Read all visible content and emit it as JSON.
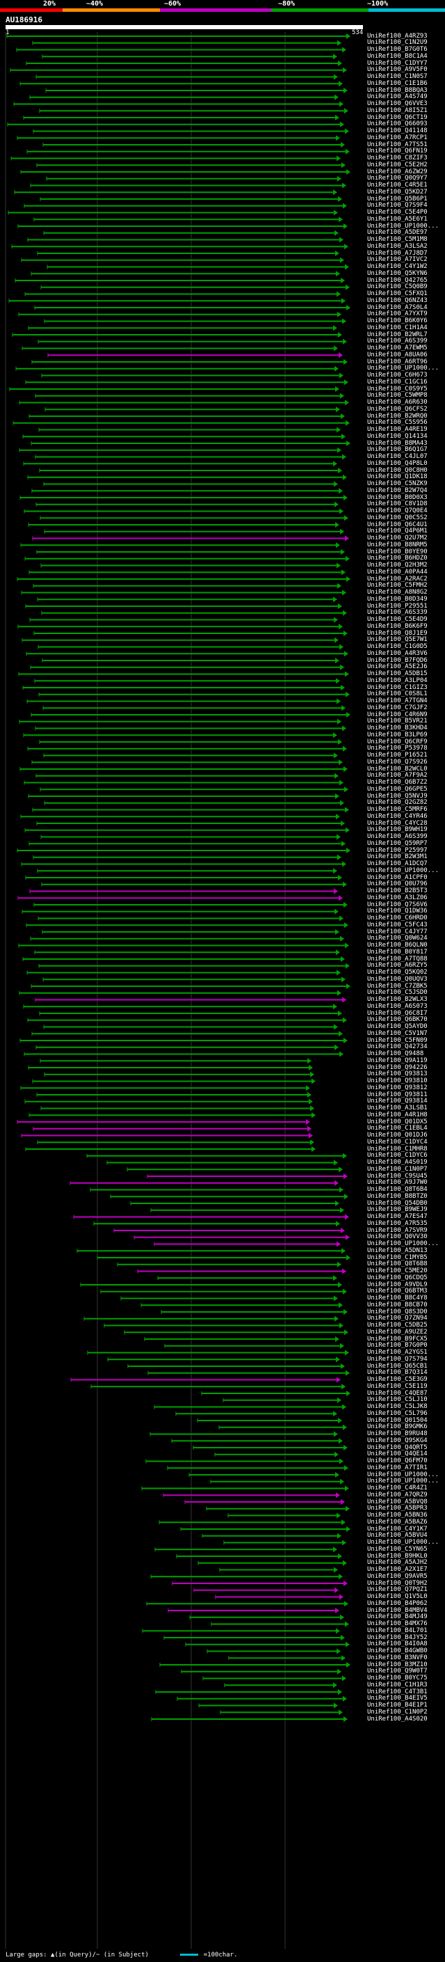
{
  "legend": {
    "marks": [
      "20%",
      "~40%",
      "~60%",
      "~80%",
      "~100%"
    ],
    "colors": [
      "#ff0000",
      "#ff8c00",
      "#c000c0",
      "#00a000",
      "#00bcd4"
    ]
  },
  "query": {
    "id": "AU186916",
    "start_label": "1",
    "end_label": "534"
  },
  "hits": [
    "UniRef100_A4RZ93",
    "UniRef100_C1N2U9",
    "UniRef100_B7G0T6",
    "UniRef100_B8C1A4",
    "UniRef100_C1DYY7",
    "UniRef100_A9V5F0",
    "UniRef100_C1N0S7",
    "UniRef100_C1E1B6",
    "UniRef100_B8BQA3",
    "UniRef100_A4S749",
    "UniRef100_Q6VVE3",
    "UniRef100_A8I5Z1",
    "UniRef100_Q6CT19",
    "UniRef100_Q66093",
    "UniRef100_Q41148",
    "UniRef100_A7RCP1",
    "UniRef100_A7TS51",
    "UniRef100_Q6FN19",
    "UniRef100_C8ZIF3",
    "UniRef100_C5E2H2",
    "UniRef100_A6ZW29",
    "UniRef100_Q0Q9Y7",
    "UniRef100_C4R5E1",
    "UniRef100_Q5KD27",
    "UniRef100_Q5B6P1",
    "UniRef100_Q7S9F4",
    "UniRef100_C5E4P0",
    "UniRef100_A5E6Y1",
    "UniRef100_UP1000...",
    "UniRef100_A5DE97",
    "UniRef100_C5M1M8",
    "UniRef100_A3LSA2",
    "UniRef100_A7J8D7",
    "UniRef100_A7IVC2",
    "UniRef100_C4Y1W2",
    "UniRef100_Q5KYN6",
    "UniRef100_Q42765",
    "UniRef100_C5Q0B9",
    "UniRef100_C5FXQ1",
    "UniRef100_Q6NZ43",
    "UniRef100_A7S0L4",
    "UniRef100_A7YXT9",
    "UniRef100_B6K0Y6",
    "UniRef100_C1H1A4",
    "UniRef100_B2WRL7",
    "UniRef100_A6S399",
    "UniRef100_A7EWM5",
    "UniRef100_A8UA06",
    "UniRef100_A6RT96",
    "UniRef100_UP1000...",
    "UniRef100_C6H673",
    "UniRef100_C1GC16",
    "UniRef100_C0S9Y5",
    "UniRef100_C5WMP8",
    "UniRef100_A6R630",
    "UniRef100_Q6CFS2",
    "UniRef100_B2WRQ0",
    "UniRef100_C5S956",
    "UniRef100_A4RE19",
    "UniRef100_Q14134",
    "UniRef100_B8MA43",
    "UniRef100_B6Q1G7",
    "UniRef100_C4JL07",
    "UniRef100_Q4P8L0",
    "UniRef100_Q0C8H0",
    "UniRef100_Q1DK18",
    "UniRef100_C5NZK9",
    "UniRef100_B2W7Q4",
    "UniRef100_B0D0X3",
    "UniRef100_C8V1D8",
    "UniRef100_Q7Q0E4",
    "UniRef100_Q0C5S2",
    "UniRef100_Q6C4U1",
    "UniRef100_Q4P6M1",
    "UniRef100_Q2U7M2",
    "UniRef100_B8NRM5",
    "UniRef100_B0YE90",
    "UniRef100_B6HDZ0",
    "UniRef100_Q2H3M2",
    "UniRef100_A0PA44",
    "UniRef100_A2RAC2",
    "UniRef100_C5FMH2",
    "UniRef100_A8N8G2",
    "UniRef100_B0D349",
    "UniRef100_P29551",
    "UniRef100_A6S339",
    "UniRef100_C5E4D9",
    "UniRef100_B6K6F9",
    "UniRef100_Q8J1E9",
    "UniRef100_Q5E7W1",
    "UniRef100_C1G0D5",
    "UniRef100_A4R3V6",
    "UniRef100_B7FQD6",
    "UniRef100_A5E2J6",
    "UniRef100_A5DB15",
    "UniRef100_A3LP04",
    "UniRef100_C1GIZ3",
    "UniRef100_C0S8L1",
    "UniRef100_A7TGN4",
    "UniRef100_C7GJF2",
    "UniRef100_C4R6N9",
    "UniRef100_B5VR21",
    "UniRef100_B3KHD4",
    "UniRef100_B3LP69",
    "UniRef100_Q6CRF9",
    "UniRef100_P53978",
    "UniRef100_P16521",
    "UniRef100_Q7S926",
    "UniRef100_B2WCL0",
    "UniRef100_A7F9A2",
    "UniRef100_Q6B7Z2",
    "UniRef100_Q6GPE5",
    "UniRef100_Q5NVJ9",
    "UniRef100_Q2GZ82",
    "UniRef100_C5MRF6",
    "UniRef100_C4YR46",
    "UniRef100_C4YC28",
    "UniRef100_B9WH19",
    "UniRef100_A6S399",
    "UniRef100_Q59RP7",
    "UniRef100_P25997",
    "UniRef100_B2W3M1",
    "UniRef100_A1DCQ7",
    "UniRef100_UP1000...",
    "UniRef100_A1CPF0",
    "UniRef100_Q0U796",
    "UniRef100_B2B5T3",
    "UniRef100_A3LZ06",
    "UniRef100_Q7S6V6",
    "UniRef100_Q1DW36",
    "UniRef100_C6HRD0",
    "UniRef100_C5FC43",
    "UniRef100_C4JY77",
    "UniRef100_Q0W624",
    "UniRef100_B6QLN0",
    "UniRef100_B0Y817",
    "UniRef100_A7TQ88",
    "UniRef100_A6RZY5",
    "UniRef100_Q5KQ02",
    "UniRef100_Q0UQV3",
    "UniRef100_C7ZBK5",
    "UniRef100_C5JSD0",
    "UniRef100_B2WLX3",
    "UniRef100_A6S073",
    "UniRef100_Q6C8I7",
    "UniRef100_Q6BK70",
    "UniRef100_Q5AYD0",
    "UniRef100_C5V1N7",
    "UniRef100_C5FN09",
    "UniRef100_Q42734",
    "UniRef100_Q9488",
    "UniRef100_Q9A119",
    "UniRef100_Q94226",
    "UniRef100_Q93813",
    "UniRef100_Q93810",
    "UniRef100_Q93812",
    "UniRef100_Q93811",
    "UniRef100_Q93814",
    "UniRef100_A3LSB1",
    "UniRef100_A4R1H8",
    "UniRef100_Q01DX5",
    "UniRef100_C1EBL4",
    "UniRef100_Q01DJ6",
    "UniRef100_C1DYC4",
    "UniRef100_C1MHR8",
    "UniRef100_C1DYC6",
    "UniRef100_A4S019",
    "UniRef100_C1N0P7",
    "UniRef100_C9SU45",
    "UniRef100_A9J7W0",
    "UniRef100_Q8T6B4",
    "UniRef100_B8BTZ0",
    "UniRef100_Q54DB0",
    "UniRef100_B9WEJ9",
    "UniRef100_A7ES47",
    "UniRef100_A7R535",
    "UniRef100_A7SVR9",
    "UniRef100_Q0VV30",
    "UniRef100_UP1000...",
    "UniRef100_A5DN13",
    "UniRef100_C1MYB5",
    "UniRef100_Q8T6B8",
    "UniRef100_C5ME20",
    "UniRef100_Q6CDQ5",
    "UniRef100_A9VDL9",
    "UniRef100_Q6BTM3",
    "UniRef100_B8C4Y8",
    "UniRef100_B8CB70",
    "UniRef100_Q8S3D0",
    "UniRef100_Q7ZN94",
    "UniRef100_C5DB25",
    "UniRef100_A9UZE2",
    "UniRef100_B9FCX5",
    "UniRef100_B7G0P0",
    "UniRef100_A2YGS1",
    "UniRef100_Q7S794",
    "UniRef100_Q65CB1",
    "UniRef100_B7Q314",
    "UniRef100_C5E3G9",
    "UniRef100_C5E119",
    "UniRef100_C4QE87",
    "UniRef100_C5LJ10",
    "UniRef100_C5LJK8",
    "UniRef100_C5L796",
    "UniRef100_Q01504",
    "UniRef100_B9GMK6",
    "UniRef100_B9RU48",
    "UniRef100_Q9SKG4",
    "UniRef100_Q4QRT5",
    "UniRef100_Q4QE14",
    "UniRef100_Q6FM70",
    "UniRef100_A7TIR1",
    "UniRef100_UP1000...",
    "UniRef100_UP1000...",
    "UniRef100_C4R4Z1",
    "UniRef100_A7QRZ9",
    "UniRef100_A5BVQ8",
    "UniRef100_A5BPR3",
    "UniRef100_A5BN36",
    "UniRef100_A5BAZ6",
    "UniRef100_C4Y1K7",
    "UniRef100_A5BVU4",
    "UniRef100_UP1000...",
    "UniRef100_C5YN65",
    "UniRef100_B9HKL0",
    "UniRef100_A5AJH2",
    "UniRef100_A2X1E7",
    "UniRef100_Q9AVR5",
    "UniRef100_Q0T9H2",
    "UniRef100_Q7PQZ1",
    "UniRef100_Q1V5L0",
    "UniRef100_B4P062",
    "UniRef100_B4MBV4",
    "UniRef100_B4MJ49",
    "UniRef100_B4MX76",
    "UniRef100_B4L701",
    "UniRef100_B4JY52",
    "UniRef100_B4I0A8",
    "UniRef100_B4GWB0",
    "UniRef100_B3NVF0",
    "UniRef100_B3MZ10",
    "UniRef100_Q9W0T7",
    "UniRef100_B0YC75",
    "UniRef100_C1H1R3",
    "UniRef100_C4T3B1",
    "UniRef100_B4EIV5",
    "UniRef100_B4E1P1",
    "UniRef100_C1N0P2",
    "UniRef100_A4S020"
  ],
  "footer": {
    "gaps_text": "Large gaps: ▲(in Query)/~ (in Subject)",
    "scale_text": "=100char."
  }
}
